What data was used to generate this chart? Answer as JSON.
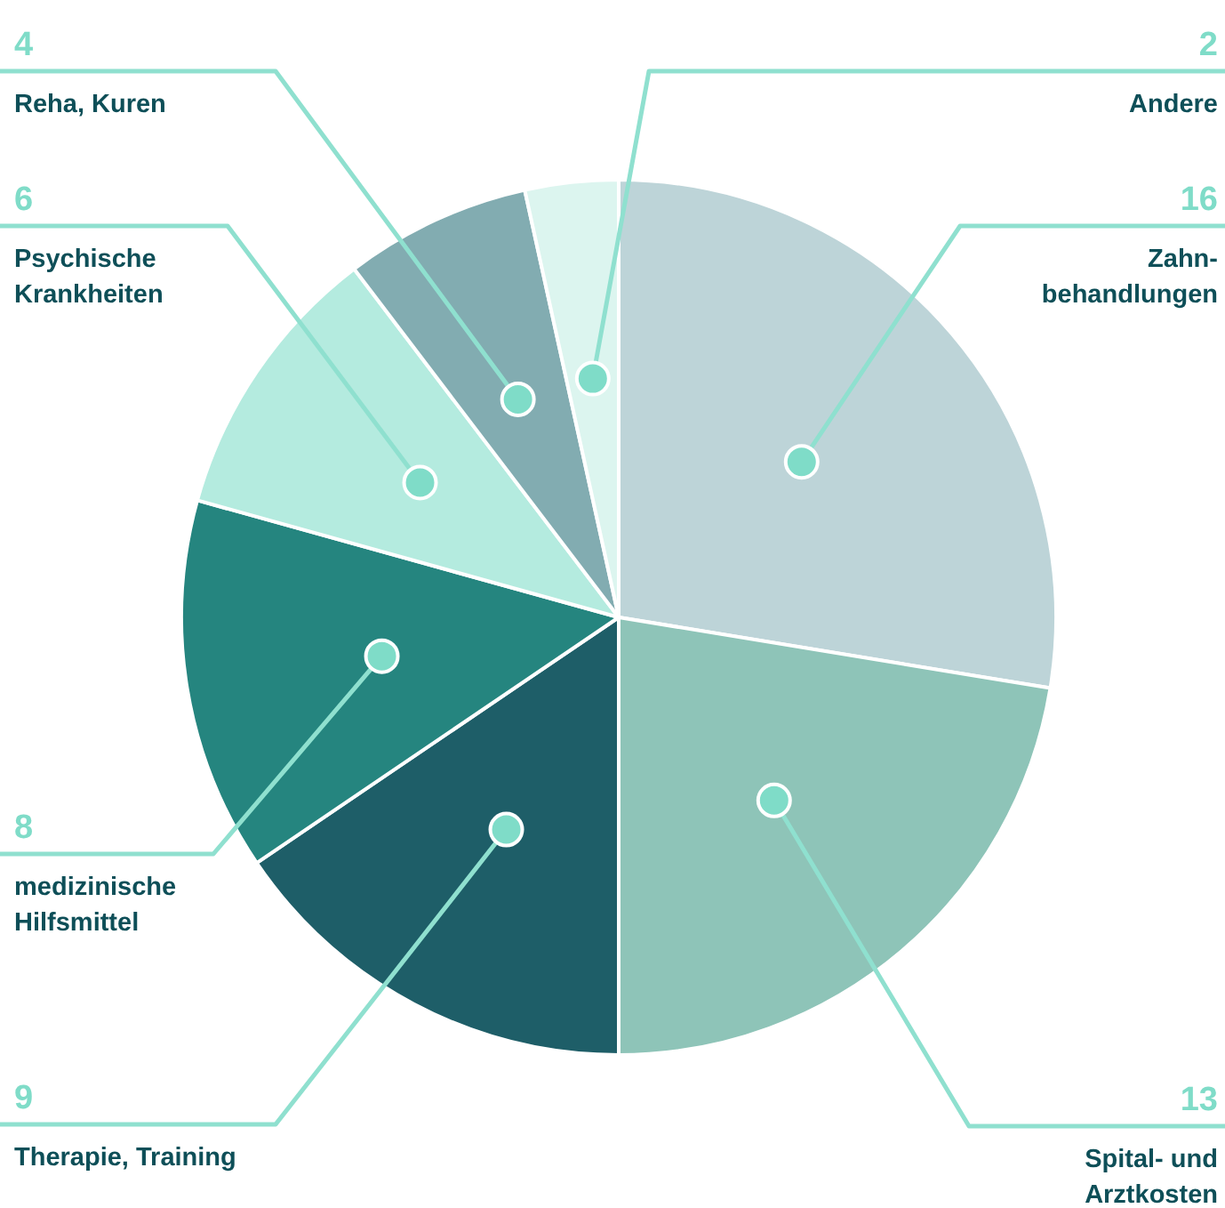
{
  "chart_data": {
    "type": "pie",
    "categories": [
      "Zahn-behandlungen",
      "Spital- und Arztkosten",
      "Therapie, Training",
      "medizinische Hilfsmittel",
      "Psychische Krankheiten",
      "Reha, Kuren",
      "Andere"
    ],
    "values": [
      16,
      13,
      9,
      8,
      6,
      4,
      2
    ],
    "colors": [
      "#bdd4d8",
      "#8ec4b8",
      "#1e5e68",
      "#25857f",
      "#b4ebdf",
      "#82acb1",
      "#dcf5ef"
    ],
    "data_labels": true
  }
}
